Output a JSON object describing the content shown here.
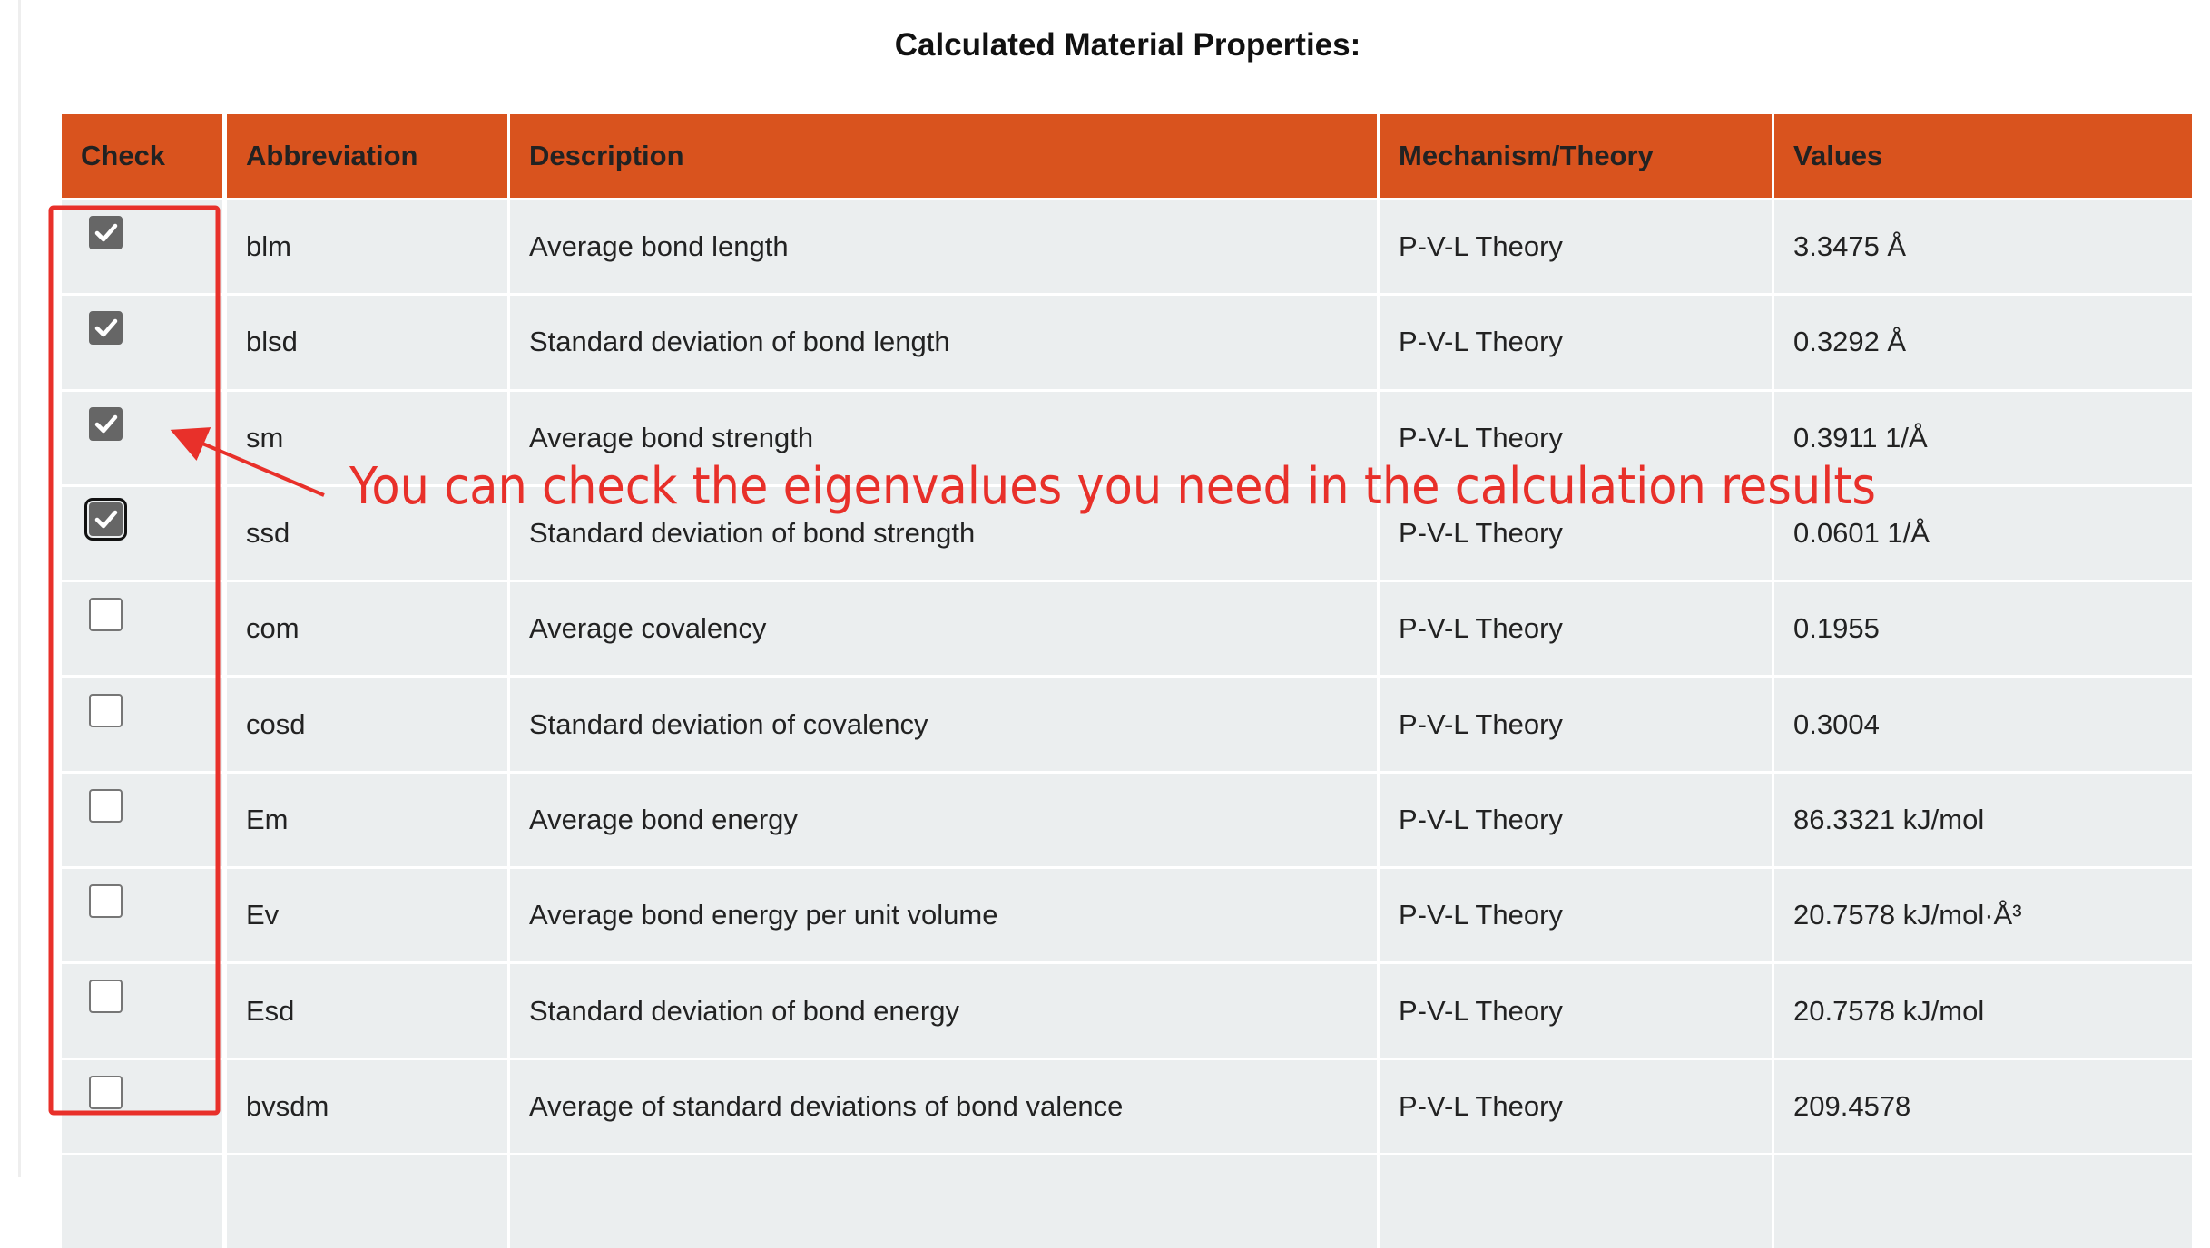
{
  "header": {
    "title": "Calculated Material Properties:"
  },
  "table": {
    "columns": [
      "Check",
      "Abbreviation",
      "Description",
      "Mechanism/Theory",
      "Values"
    ],
    "rows": [
      {
        "checked": true,
        "abbreviation": "blm",
        "description": "Average bond length",
        "mechanism": "P-V-L Theory",
        "value": "3.3475 Å"
      },
      {
        "checked": true,
        "abbreviation": "blsd",
        "description": "Standard deviation of bond length",
        "mechanism": "P-V-L Theory",
        "value": "0.3292 Å"
      },
      {
        "checked": true,
        "abbreviation": "sm",
        "description": "Average bond strength",
        "mechanism": "P-V-L Theory",
        "value": "0.3911 1/Å"
      },
      {
        "checked": true,
        "focused": true,
        "abbreviation": "ssd",
        "description": "Standard deviation of bond strength",
        "mechanism": "P-V-L Theory",
        "value": "0.0601 1/Å"
      },
      {
        "checked": false,
        "abbreviation": "com",
        "description": "Average covalency",
        "mechanism": "P-V-L Theory",
        "value": "0.1955"
      },
      {
        "checked": false,
        "abbreviation": "cosd",
        "description": "Standard deviation of covalency",
        "mechanism": "P-V-L Theory",
        "value": "0.3004"
      },
      {
        "checked": false,
        "abbreviation": "Em",
        "description": "Average bond energy",
        "mechanism": "P-V-L Theory",
        "value": "86.3321 kJ/mol"
      },
      {
        "checked": false,
        "abbreviation": "Ev",
        "description": "Average bond energy per unit volume",
        "mechanism": "P-V-L Theory",
        "value": "20.7578 kJ/mol·Å³"
      },
      {
        "checked": false,
        "abbreviation": "Esd",
        "description": "Standard deviation of bond energy",
        "mechanism": "P-V-L Theory",
        "value": "20.7578 kJ/mol"
      },
      {
        "checked": false,
        "abbreviation": "bvsdm",
        "description": "Average of standard deviations of bond valence",
        "mechanism": "P-V-L Theory",
        "value": "209.4578"
      }
    ]
  },
  "annotation": "You can check the eigenvalues you need in the calculation results"
}
